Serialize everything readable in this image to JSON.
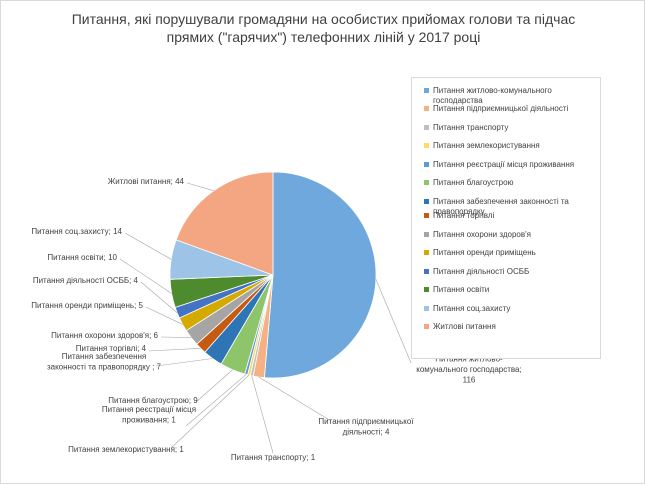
{
  "chart_data": {
    "type": "pie",
    "title": "Питання, які порушували громадяни на особистих прийомах голови та підчас прямих (\"гарячих\") телефонних ліній у 2017 році",
    "legend_position": "right",
    "slices": [
      {
        "name": "Питання житлово-комунального господарства",
        "value": 116,
        "color": "#6fa8dc"
      },
      {
        "name": "Питання підприємницької діяльності",
        "value": 4,
        "color": "#f4b183"
      },
      {
        "name": "Питання транспорту",
        "value": 1,
        "color": "#bfbfbf"
      },
      {
        "name": "Питання землекористування",
        "value": 1,
        "color": "#ffd966"
      },
      {
        "name": "Питання реєстрації місця проживання",
        "value": 1,
        "color": "#5b9bd5"
      },
      {
        "name": "Питання благоустрою",
        "value": 9,
        "color": "#8fc56a"
      },
      {
        "name": "Питання забезпечення законності та правопорядку",
        "value": 7,
        "color": "#2e75b6"
      },
      {
        "name": "Питання торгівлі",
        "value": 4,
        "color": "#c55a11"
      },
      {
        "name": "Питання охорони здоров'я",
        "value": 6,
        "color": "#a5a5a5"
      },
      {
        "name": "Питання оренди приміщень",
        "value": 5,
        "color": "#d4a900"
      },
      {
        "name": "Питання діяльності ОСББ",
        "value": 4,
        "color": "#4472c4"
      },
      {
        "name": "Питання освіти",
        "value": 10,
        "color": "#4e8a2e"
      },
      {
        "name": "Питання соц.захисту",
        "value": 14,
        "color": "#9dc3e6"
      },
      {
        "name": "Житлові питання",
        "value": 44,
        "color": "#f4a582"
      }
    ],
    "labels": [
      [
        "Питання житлово-",
        "комунального господарства;",
        "116"
      ],
      [
        "Питання підприємницької",
        "діяльності; 4"
      ],
      [
        "Питання транспорту; 1"
      ],
      [
        "Питання землекористування; 1"
      ],
      [
        "Питання реєстрації місця",
        "проживання; 1"
      ],
      [
        "Питання благоустрою; 9"
      ],
      [
        "Питання забезпечення",
        "законності та правопорядку ; 7"
      ],
      [
        "Питання торгівлі; 4"
      ],
      [
        "Питання охорони здоров'я; 6"
      ],
      [
        "Питання оренди приміщень; 5"
      ],
      [
        "Питання діяльності ОСББ; 4"
      ],
      [
        "Питання освіти; 10"
      ],
      [
        "Питання соц.захисту; 14"
      ],
      [
        "Житлові питання; 44"
      ]
    ],
    "legend": [
      [
        "Питання житлово-комунального",
        "господарства"
      ],
      [
        "Питання підприємницької діяльності"
      ],
      [
        "Питання транспорту"
      ],
      [
        "Питання землекористування"
      ],
      [
        "Питання реєстрації місця проживання"
      ],
      [
        "Питання благоустрою"
      ],
      [
        "Питання забезпечення законності та",
        "правопорядку"
      ],
      [
        "Питання торгівлі"
      ],
      [
        "Питання охорони здоров'я"
      ],
      [
        "Питання оренди приміщень"
      ],
      [
        "Питання діяльності ОСББ"
      ],
      [
        "Питання освіти"
      ],
      [
        "Питання соц.захисту"
      ],
      [
        "Житлові питання"
      ]
    ]
  }
}
